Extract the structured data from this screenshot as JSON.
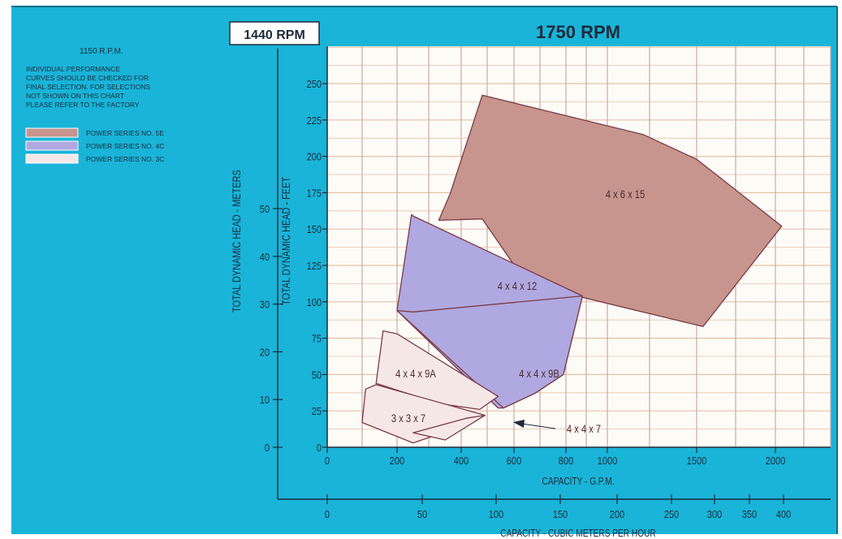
{
  "colors": {
    "background": "#19b4d8",
    "plot_bg": "#fdfbf6",
    "grid_v": "#c9a0a4",
    "grid_h": "#e5c2a8",
    "series_5e": "#c7958d",
    "series_4c": "#b0a8e0",
    "series_3c": "#f6e7e7",
    "outline": "#7a3a45",
    "axis": "#1e2a3a"
  },
  "labels": {
    "rpm_box": "1440 RPM",
    "rpm_title": "1750 RPM",
    "note_title": "1150 R.P.M.",
    "note_lines": [
      "INDIVIDUAL PERFORMANCE",
      "CURVES SHOULD BE CHECKED FOR",
      "FINAL SELECTION. FOR SELECTIONS",
      "NOT SHOWN ON THIS CHART",
      "PLEASE REFER TO THE FACTORY"
    ],
    "legend": [
      {
        "text": "POWER SERIES NO. 5E",
        "color_key": "series_5e"
      },
      {
        "text": "POWER SERIES NO. 4C",
        "color_key": "series_4c"
      },
      {
        "text": "POWER SERIES NO. 3C",
        "color_key": "series_3c"
      }
    ]
  },
  "chart_data": {
    "type": "area",
    "title": "1750 RPM",
    "x_axis": {
      "label": "CAPACITY - G.P.M.",
      "ticks": [
        "0",
        "200",
        "400",
        "600",
        "800",
        "1000",
        "1500",
        "2000"
      ],
      "scale": "nonlinear",
      "range": [
        0,
        2000
      ]
    },
    "x2_axis": {
      "label": "CAPACITY - CUBIC METERS PER HOUR",
      "ticks": [
        "0",
        "50",
        "100",
        "150",
        "200",
        "250",
        "300",
        "350",
        "400"
      ]
    },
    "y_axis": {
      "label": "TOTAL DYNAMIC HEAD - FEET",
      "ticks": [
        "0",
        "25",
        "50",
        "75",
        "100",
        "125",
        "150",
        "175",
        "200",
        "225",
        "250"
      ],
      "range": [
        0,
        275
      ]
    },
    "y2_axis": {
      "label": "TOTAL DYNAMIC HEAD - METERS",
      "ticks": [
        "0",
        "10",
        "20",
        "30",
        "40",
        "50"
      ]
    },
    "grid": true,
    "regions": [
      {
        "label": "4 x 6 x 15",
        "series": "POWER SERIES NO. 5E",
        "outline": [
          [
            330,
            156
          ],
          [
            365,
            174
          ],
          [
            480,
            242
          ],
          [
            1200,
            215
          ],
          [
            1500,
            198
          ],
          [
            2040,
            152
          ],
          [
            1540,
            83
          ],
          [
            880,
            103
          ],
          [
            640,
            115
          ],
          [
            480,
            157
          ]
        ]
      },
      {
        "label": "4 x 4 x 12",
        "series": "POWER SERIES NO. 4C",
        "outline": [
          [
            245,
            160
          ],
          [
            250,
            159
          ],
          [
            880,
            104
          ],
          [
            790,
            50
          ],
          [
            680,
            37
          ],
          [
            560,
            27
          ],
          [
            540,
            27
          ],
          [
            200,
            94
          ]
        ]
      },
      {
        "label": "4 x 4 x 9B",
        "series": "POWER SERIES NO. 4C",
        "outline": [
          [
            200,
            94
          ],
          [
            250,
            93
          ],
          [
            880,
            104
          ],
          [
            790,
            50
          ],
          [
            680,
            37
          ],
          [
            560,
            27
          ],
          [
            200,
            94
          ]
        ]
      },
      {
        "label": "4 x 4 x 9A",
        "series": "POWER SERIES NO. 3C",
        "outline": [
          [
            160,
            80
          ],
          [
            200,
            78
          ],
          [
            540,
            35
          ],
          [
            470,
            26
          ],
          [
            330,
            30
          ],
          [
            140,
            44
          ]
        ]
      },
      {
        "label": "3 x 3 x 7",
        "series": "POWER SERIES NO. 3C",
        "outline": [
          [
            110,
            40
          ],
          [
            140,
            43
          ],
          [
            490,
            22
          ],
          [
            400,
            13
          ],
          [
            330,
            9
          ],
          [
            250,
            3
          ],
          [
            100,
            17
          ]
        ]
      },
      {
        "label": "4 x 4 x 7",
        "series": "POWER SERIES NO. 3C",
        "outline": [
          [
            420,
            20
          ],
          [
            490,
            22
          ],
          [
            350,
            5
          ],
          [
            250,
            10
          ]
        ]
      }
    ]
  }
}
